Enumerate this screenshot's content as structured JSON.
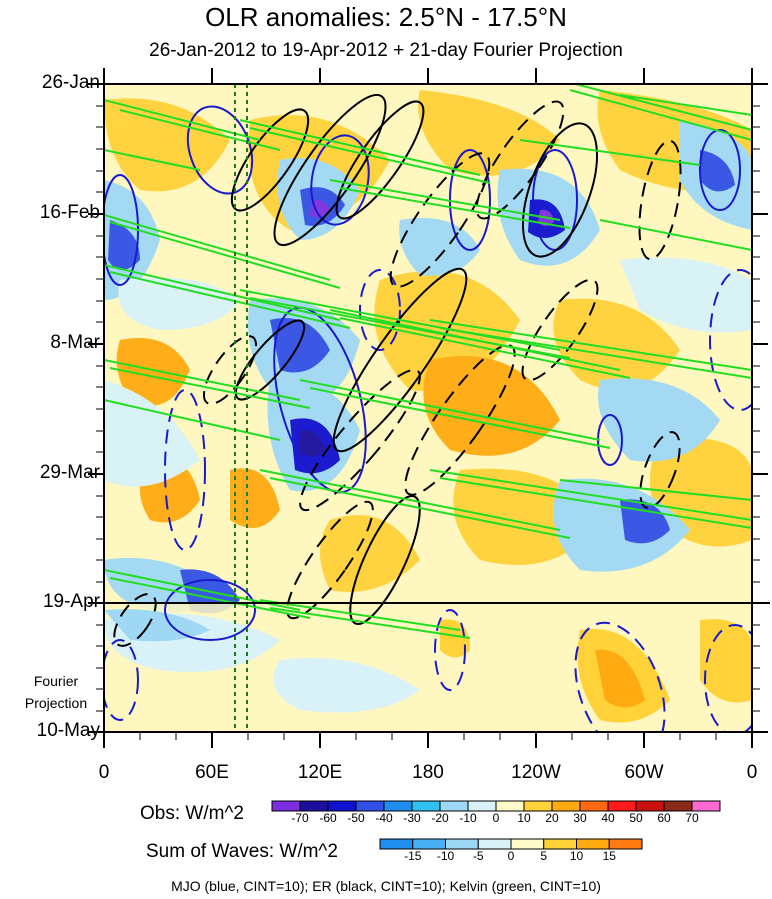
{
  "chart_data": {
    "type": "heatmap",
    "title": "OLR anomalies: 2.5°N - 17.5°N",
    "subtitle": "26-Jan-2012 to 19-Apr-2012 + 21-day Fourier Projection",
    "x_ticks": [
      "0",
      "60E",
      "120E",
      "180",
      "120W",
      "60W",
      "0"
    ],
    "y_ticks": [
      "26-Jan",
      "16-Feb",
      "8-Mar",
      "29-Mar",
      "19-Apr",
      "10-May"
    ],
    "projection_label": "Fourier Projection",
    "obs_colorbar": {
      "title": "Obs: W/m^2",
      "levels": [
        -70,
        -60,
        -50,
        -40,
        -30,
        -20,
        -10,
        0,
        10,
        20,
        30,
        40,
        50,
        60,
        70
      ],
      "colors": [
        "#7d2ee0",
        "#1a0f9e",
        "#1010d0",
        "#3050e6",
        "#1e8ff0",
        "#2fc0f0",
        "#9fd8f5",
        "#d8f2f8",
        "#fffbc8",
        "#ffd23a",
        "#ffaa10",
        "#ff6a10",
        "#ff1a1a",
        "#cc1010",
        "#8a2a1a",
        "#ff6ad0"
      ]
    },
    "waves_colorbar": {
      "title": "Sum of Waves: W/m^2",
      "levels": [
        -15,
        -10,
        -5,
        0,
        5,
        10,
        15
      ],
      "colors": [
        "#1e8ff0",
        "#4ab0f5",
        "#9fd8f5",
        "#d8f2f8",
        "#fffbc8",
        "#ffd23a",
        "#ffaa10",
        "#ff7a10"
      ]
    },
    "legend_note": "MJO (blue, CINT=10); ER (black, CINT=10); Kelvin (green, CINT=10)"
  }
}
